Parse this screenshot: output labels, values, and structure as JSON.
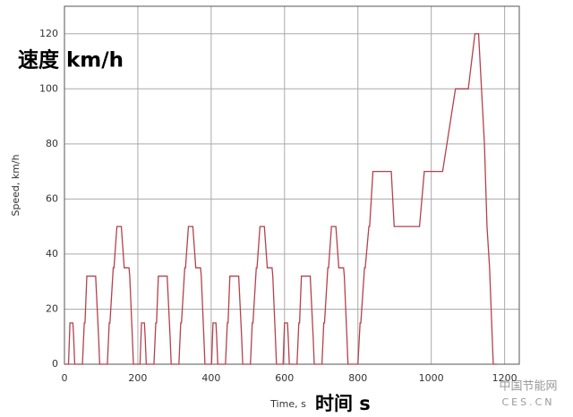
{
  "chart_data": {
    "type": "line",
    "y_label": "Speed, km/h",
    "x_label": "Time, s",
    "annotations": [
      "速度 km/h",
      "时间 s"
    ],
    "watermark": [
      "中国节能网",
      "CES.CN"
    ],
    "x": [
      0,
      11,
      15,
      23,
      25,
      28,
      49,
      54,
      56,
      61,
      85,
      93,
      96,
      117,
      122,
      124,
      133,
      135,
      143,
      155,
      163,
      176,
      178,
      185,
      188,
      195,
      206,
      210,
      218,
      220,
      223,
      244,
      249,
      251,
      256,
      280,
      288,
      291,
      312,
      317,
      319,
      328,
      330,
      338,
      350,
      358,
      371,
      373,
      380,
      383,
      390,
      401,
      405,
      413,
      415,
      418,
      439,
      444,
      446,
      451,
      475,
      483,
      486,
      507,
      512,
      514,
      523,
      525,
      533,
      545,
      553,
      566,
      568,
      575,
      578,
      585,
      596,
      600,
      608,
      610,
      613,
      634,
      639,
      641,
      646,
      670,
      678,
      681,
      702,
      707,
      709,
      718,
      720,
      728,
      740,
      748,
      761,
      763,
      770,
      773,
      780,
      800,
      806,
      808,
      818,
      820,
      830,
      832,
      841,
      891,
      899,
      968,
      981,
      1031,
      1066,
      1101,
      1119,
      1129,
      1145,
      1152,
      1159,
      1169,
      1180
    ],
    "series": [
      {
        "color": "#b5414a",
        "values": [
          0,
          0,
          15,
          15,
          10,
          0,
          0,
          15,
          15,
          32,
          32,
          10,
          0,
          0,
          15,
          15,
          35,
          35,
          50,
          50,
          35,
          35,
          32,
          10,
          0,
          0,
          0,
          15,
          15,
          10,
          0,
          0,
          15,
          15,
          32,
          32,
          10,
          0,
          0,
          15,
          15,
          35,
          35,
          50,
          50,
          35,
          35,
          32,
          10,
          0,
          0,
          0,
          15,
          15,
          10,
          0,
          0,
          15,
          15,
          32,
          32,
          10,
          0,
          0,
          15,
          15,
          35,
          35,
          50,
          50,
          35,
          35,
          32,
          10,
          0,
          0,
          0,
          15,
          15,
          10,
          0,
          0,
          15,
          15,
          32,
          32,
          10,
          0,
          0,
          15,
          15,
          35,
          35,
          50,
          50,
          35,
          35,
          32,
          10,
          0,
          0,
          0,
          15,
          15,
          35,
          35,
          50,
          50,
          70,
          70,
          50,
          50,
          70,
          70,
          100,
          100,
          120,
          120,
          80,
          50,
          35,
          0,
          0
        ]
      }
    ],
    "xlim": [
      0,
      1240
    ],
    "ylim": [
      0,
      130
    ],
    "xticks": [
      0,
      200,
      400,
      600,
      800,
      1000,
      1200
    ],
    "yticks": [
      0,
      20,
      40,
      60,
      80,
      100,
      120
    ],
    "grid": true
  }
}
